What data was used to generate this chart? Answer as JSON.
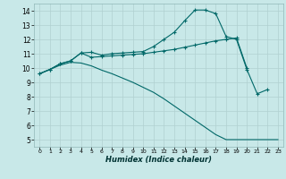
{
  "xlabel": "Humidex (Indice chaleur)",
  "bg_color": "#c8e8e8",
  "grid_color": "#b0d0d0",
  "line_color": "#006868",
  "xlim": [
    -0.5,
    23.5
  ],
  "ylim": [
    4.5,
    14.5
  ],
  "xticks": [
    0,
    1,
    2,
    3,
    4,
    5,
    6,
    7,
    8,
    9,
    10,
    11,
    12,
    13,
    14,
    15,
    16,
    17,
    18,
    19,
    20,
    21,
    22,
    23
  ],
  "yticks": [
    5,
    6,
    7,
    8,
    9,
    10,
    11,
    12,
    13,
    14
  ],
  "line1_x": [
    0,
    1,
    2,
    3,
    4,
    5,
    6,
    7,
    8,
    9,
    10,
    11,
    12,
    13,
    14,
    15,
    16,
    17,
    18,
    19,
    20,
    21,
    22
  ],
  "line1_y": [
    9.6,
    9.9,
    10.3,
    10.5,
    11.05,
    11.1,
    10.9,
    11.0,
    11.05,
    11.1,
    11.15,
    11.5,
    12.0,
    12.5,
    13.3,
    14.05,
    14.05,
    13.8,
    12.2,
    12.0,
    9.9,
    8.2,
    8.5
  ],
  "line2_x": [
    0,
    1,
    2,
    3,
    4,
    5,
    6,
    7,
    8,
    9,
    10,
    11,
    12,
    13,
    14,
    15,
    16,
    17,
    18,
    19,
    20
  ],
  "line2_y": [
    9.6,
    9.9,
    10.3,
    10.5,
    11.05,
    10.75,
    10.8,
    10.85,
    10.9,
    10.95,
    11.0,
    11.1,
    11.2,
    11.3,
    11.45,
    11.6,
    11.75,
    11.9,
    12.0,
    12.1,
    10.0
  ],
  "line3_x": [
    0,
    1,
    2,
    3,
    4,
    5,
    6,
    7,
    8,
    9,
    10,
    11,
    12,
    13,
    14,
    15,
    16,
    17,
    18,
    19,
    20,
    21,
    22,
    23
  ],
  "line3_y": [
    9.6,
    9.9,
    10.2,
    10.4,
    10.35,
    10.15,
    9.85,
    9.6,
    9.3,
    9.0,
    8.65,
    8.3,
    7.85,
    7.35,
    6.85,
    6.35,
    5.85,
    5.35,
    5.0,
    5.0,
    5.0,
    5.0,
    5.0,
    5.0
  ]
}
